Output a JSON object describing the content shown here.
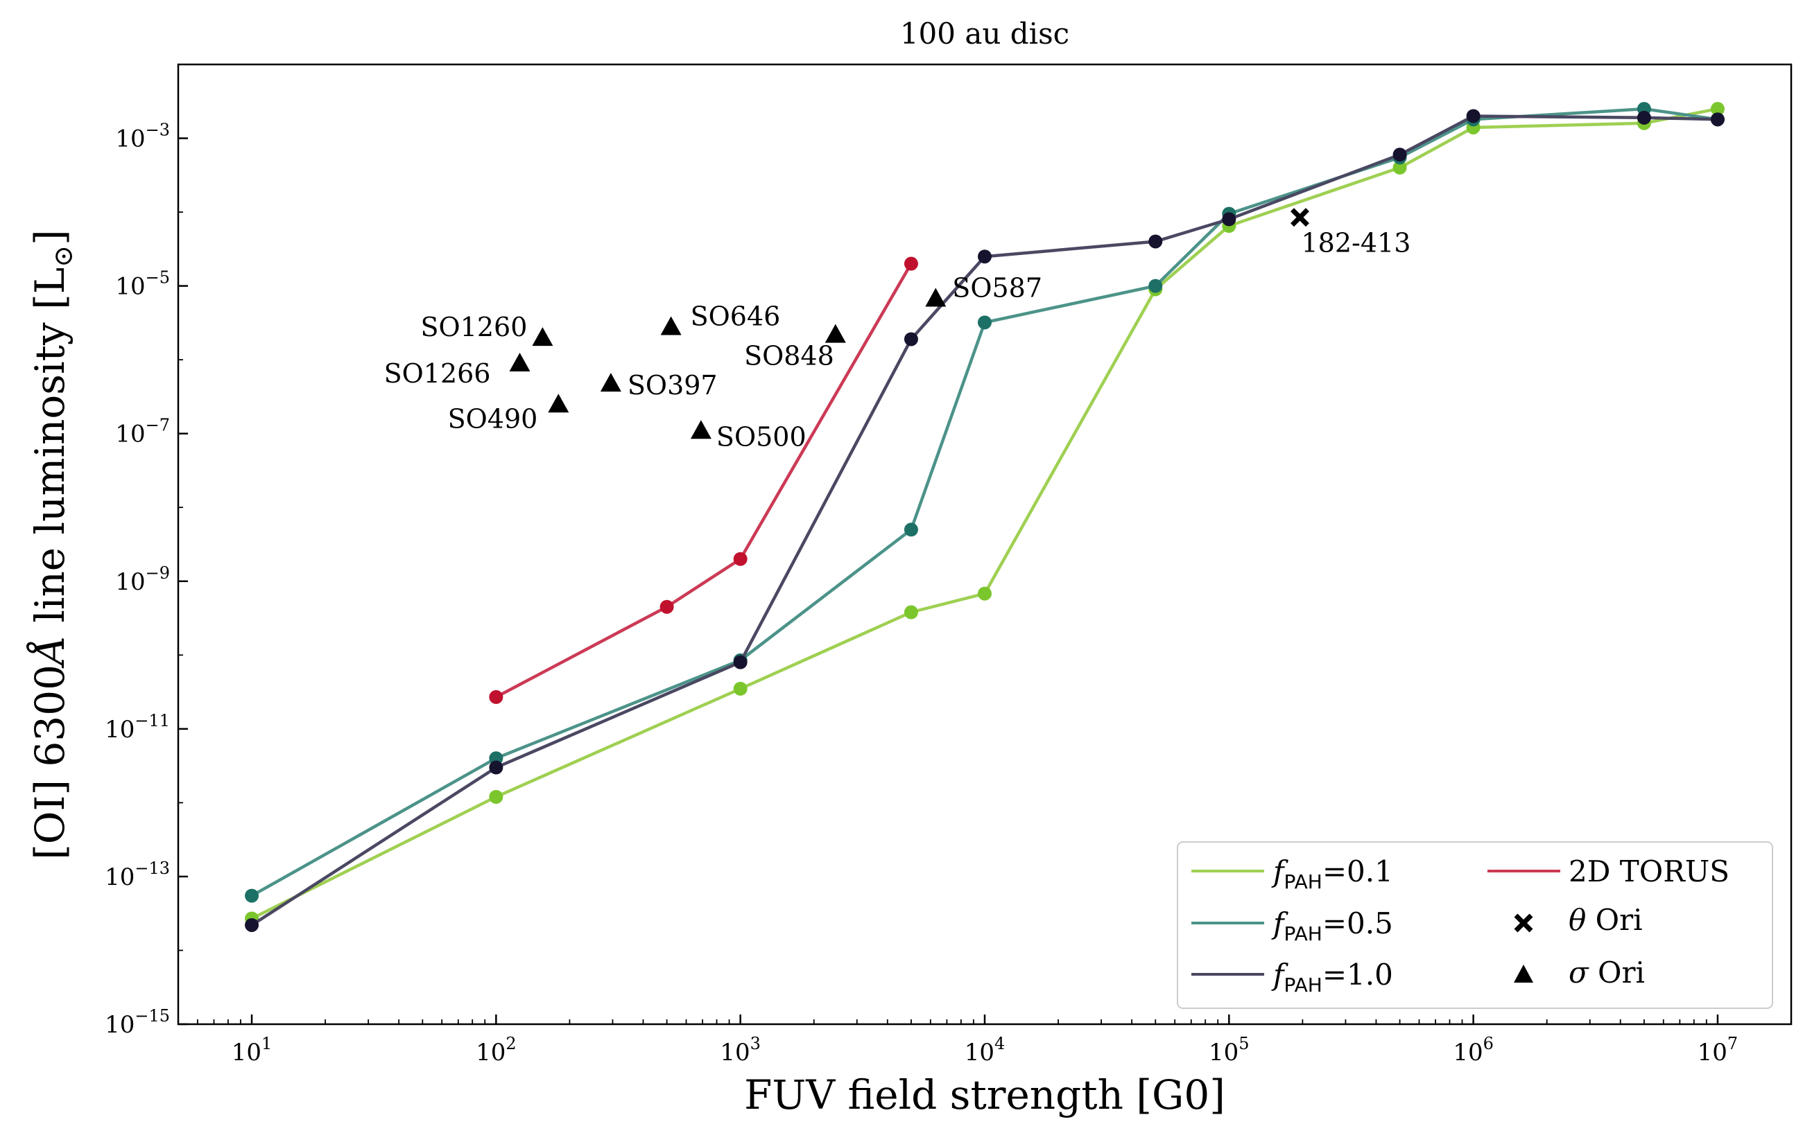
{
  "chart_data": {
    "type": "line",
    "title": "100 au disc",
    "xlabel": "FUV field strength [G0]",
    "ylabel_main": "[OI] 6300",
    "ylabel_unit": "Å",
    "ylabel_rest": " line luminosity [L",
    "ylabel_sub": "⊙",
    "ylabel_close": "]",
    "xscale": "log",
    "yscale": "log",
    "xlim": [
      5,
      20000000
    ],
    "ylim": [
      1e-15,
      0.01
    ],
    "xticks": [
      {
        "value": 10,
        "base": "10",
        "exp": "1"
      },
      {
        "value": 100,
        "base": "10",
        "exp": "2"
      },
      {
        "value": 1000,
        "base": "10",
        "exp": "3"
      },
      {
        "value": 10000,
        "base": "10",
        "exp": "4"
      },
      {
        "value": 100000,
        "base": "10",
        "exp": "5"
      },
      {
        "value": 1000000,
        "base": "10",
        "exp": "6"
      },
      {
        "value": 10000000,
        "base": "10",
        "exp": "7"
      }
    ],
    "yticks": [
      {
        "value": 1e-15,
        "base": "10",
        "exp": "−15"
      },
      {
        "value": 1e-13,
        "base": "10",
        "exp": "−13"
      },
      {
        "value": 1e-11,
        "base": "10",
        "exp": "−11"
      },
      {
        "value": 1e-09,
        "base": "10",
        "exp": "−9"
      },
      {
        "value": 1e-07,
        "base": "10",
        "exp": "−7"
      },
      {
        "value": 1e-05,
        "base": "10",
        "exp": "−5"
      },
      {
        "value": 0.001,
        "base": "10",
        "exp": "−3"
      }
    ],
    "series": [
      {
        "id": "pah01",
        "color": "#9fd052",
        "markerColor": "#7bc62d",
        "legend_italic": "f",
        "legend_sub": "PAH",
        "legend_rest": "=0.1",
        "x": [
          10,
          100,
          1000,
          5000,
          10000,
          50000,
          100000,
          500000,
          1000000,
          5000000,
          10000000
        ],
        "y": [
          2.7e-14,
          1.2e-12,
          3.5e-11,
          3.8e-10,
          6.8e-10,
          9e-06,
          6.5e-05,
          0.0004,
          0.0014,
          0.0016,
          0.0025
        ]
      },
      {
        "id": "pah05",
        "color": "#4c9389",
        "markerColor": "#1d7066",
        "legend_italic": "f",
        "legend_sub": "PAH",
        "legend_rest": "=0.5",
        "x": [
          10,
          100,
          1000,
          5000,
          10000,
          50000,
          100000,
          500000,
          1000000,
          5000000,
          10000000
        ],
        "y": [
          5.5e-14,
          4e-12,
          8.5e-11,
          5e-09,
          3.2e-06,
          1e-05,
          9.5e-05,
          0.00055,
          0.0018,
          0.0025,
          0.0018
        ]
      },
      {
        "id": "pah10",
        "color": "#4a4862",
        "markerColor": "#16132e",
        "legend_italic": "f",
        "legend_sub": "PAH",
        "legend_rest": "=1.0",
        "x": [
          10,
          100,
          1000,
          5000,
          10000,
          50000,
          100000,
          500000,
          1000000,
          5000000,
          10000000
        ],
        "y": [
          2.2e-14,
          3e-12,
          8e-11,
          1.9e-06,
          2.5e-05,
          4e-05,
          8e-05,
          0.0006,
          0.002,
          0.0019,
          0.0018
        ]
      },
      {
        "id": "torus",
        "color": "#cc3a55",
        "markerColor": "#c0112e",
        "legend_label": "2D TORUS",
        "x": [
          100,
          500,
          1000,
          5000
        ],
        "y": [
          2.7e-11,
          4.5e-10,
          2e-09,
          2e-05
        ]
      }
    ],
    "theta_ori": {
      "legend_italic": "θ",
      "legend_rest": " Ori",
      "points": [
        {
          "name": "182-413",
          "x": 195000,
          "y": 8.5e-05
        }
      ]
    },
    "sigma_ori": {
      "legend_italic": "σ",
      "legend_rest": " Ori",
      "points": [
        {
          "name": "SO1260",
          "x": 155,
          "y": 2e-06
        },
        {
          "name": "SO1266",
          "x": 125,
          "y": 9e-07
        },
        {
          "name": "SO490",
          "x": 180,
          "y": 2.5e-07
        },
        {
          "name": "SO397",
          "x": 295,
          "y": 4.8e-07
        },
        {
          "name": "SO646",
          "x": 520,
          "y": 2.8e-06
        },
        {
          "name": "SO500",
          "x": 690,
          "y": 1.1e-07
        },
        {
          "name": "SO848",
          "x": 2450,
          "y": 2.2e-06
        },
        {
          "name": "SO587",
          "x": 6300,
          "y": 6.8e-06
        }
      ]
    },
    "legend_position": "lower-right"
  }
}
